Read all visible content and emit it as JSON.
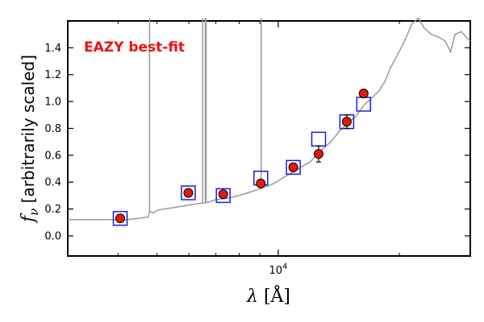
{
  "chart_data": {
    "type": "scatter",
    "title": "",
    "annotation": "EAZY best-fit",
    "xlabel": "λ [Å]",
    "ylabel": "f_ν [arbitrarily scaled]",
    "x_scale": "log",
    "xlim": [
      3000,
      30000
    ],
    "ylim": [
      -0.15,
      1.6
    ],
    "x_ticks": [
      {
        "value": 10000,
        "label": "10^4"
      }
    ],
    "y_ticks": [
      0.0,
      0.2,
      0.4,
      0.6,
      0.8,
      1.0,
      1.2,
      1.4
    ],
    "y_tick_labels": [
      "0.0",
      "0.2",
      "0.4",
      "0.6",
      "0.8",
      "1.0",
      "1.2",
      "1.4"
    ],
    "colors": {
      "template": "#999999",
      "observed_fill": "#e41a0f",
      "model_box": "#1a1adb",
      "annotation": "#ee1111"
    },
    "series": [
      {
        "type": "line",
        "points": [
          [
            3000,
            0.12
          ],
          [
            3600,
            0.12
          ],
          [
            4200,
            0.12
          ],
          [
            4500,
            0.13
          ],
          [
            4750,
            0.14
          ],
          [
            4800,
            0.18
          ],
          [
            4900,
            0.17
          ],
          [
            5000,
            0.19
          ],
          [
            5200,
            0.2
          ],
          [
            5500,
            0.21
          ],
          [
            6000,
            0.23
          ],
          [
            6700,
            0.25
          ],
          [
            7000,
            0.27
          ],
          [
            7500,
            0.28
          ],
          [
            8000,
            0.3
          ],
          [
            8600,
            0.33
          ],
          [
            9000,
            0.35
          ],
          [
            9600,
            0.38
          ],
          [
            10000,
            0.41
          ],
          [
            10500,
            0.45
          ],
          [
            11000,
            0.48
          ],
          [
            11500,
            0.52
          ],
          [
            12000,
            0.55
          ],
          [
            12600,
            0.62
          ],
          [
            13500,
            0.7
          ],
          [
            14200,
            0.78
          ],
          [
            15000,
            0.85
          ],
          [
            15500,
            0.88
          ],
          [
            16300,
            0.97
          ],
          [
            17000,
            1.02
          ],
          [
            17800,
            1.08
          ],
          [
            18400,
            1.15
          ],
          [
            19000,
            1.25
          ],
          [
            19800,
            1.35
          ],
          [
            20600,
            1.45
          ],
          [
            21500,
            1.58
          ],
          [
            22300,
            1.62
          ],
          [
            23000,
            1.55
          ],
          [
            24000,
            1.5
          ],
          [
            25000,
            1.48
          ],
          [
            26000,
            1.45
          ],
          [
            26800,
            1.37
          ],
          [
            27500,
            1.5
          ],
          [
            28500,
            1.52
          ],
          [
            29500,
            1.47
          ],
          [
            30000,
            1.45
          ]
        ],
        "emission_lines": [
          {
            "x": 4790,
            "y": 1.62
          },
          {
            "x": 6490,
            "y": 1.62
          },
          {
            "x": 6590,
            "y": 1.62
          },
          {
            "x": 6620,
            "y": 1.62
          },
          {
            "x": 9070,
            "y": 1.62
          }
        ]
      },
      {
        "type": "model_boxes",
        "points": [
          [
            4050,
            0.13
          ],
          [
            5980,
            0.32
          ],
          [
            7300,
            0.3
          ],
          [
            9050,
            0.43
          ],
          [
            10900,
            0.51
          ],
          [
            12600,
            0.72
          ],
          [
            14800,
            0.85
          ],
          [
            16300,
            0.98
          ]
        ]
      },
      {
        "type": "observed",
        "points": [
          {
            "x": 4050,
            "y": 0.13,
            "err": 0.01
          },
          {
            "x": 5980,
            "y": 0.32,
            "err": 0.02
          },
          {
            "x": 7300,
            "y": 0.31,
            "err": 0.02
          },
          {
            "x": 9050,
            "y": 0.39,
            "err": 0.02
          },
          {
            "x": 10900,
            "y": 0.51,
            "err": 0.03
          },
          {
            "x": 12600,
            "y": 0.61,
            "err": 0.06
          },
          {
            "x": 14800,
            "y": 0.85,
            "err": 0.05
          },
          {
            "x": 16300,
            "y": 1.06,
            "err": 0.03
          }
        ]
      }
    ]
  }
}
